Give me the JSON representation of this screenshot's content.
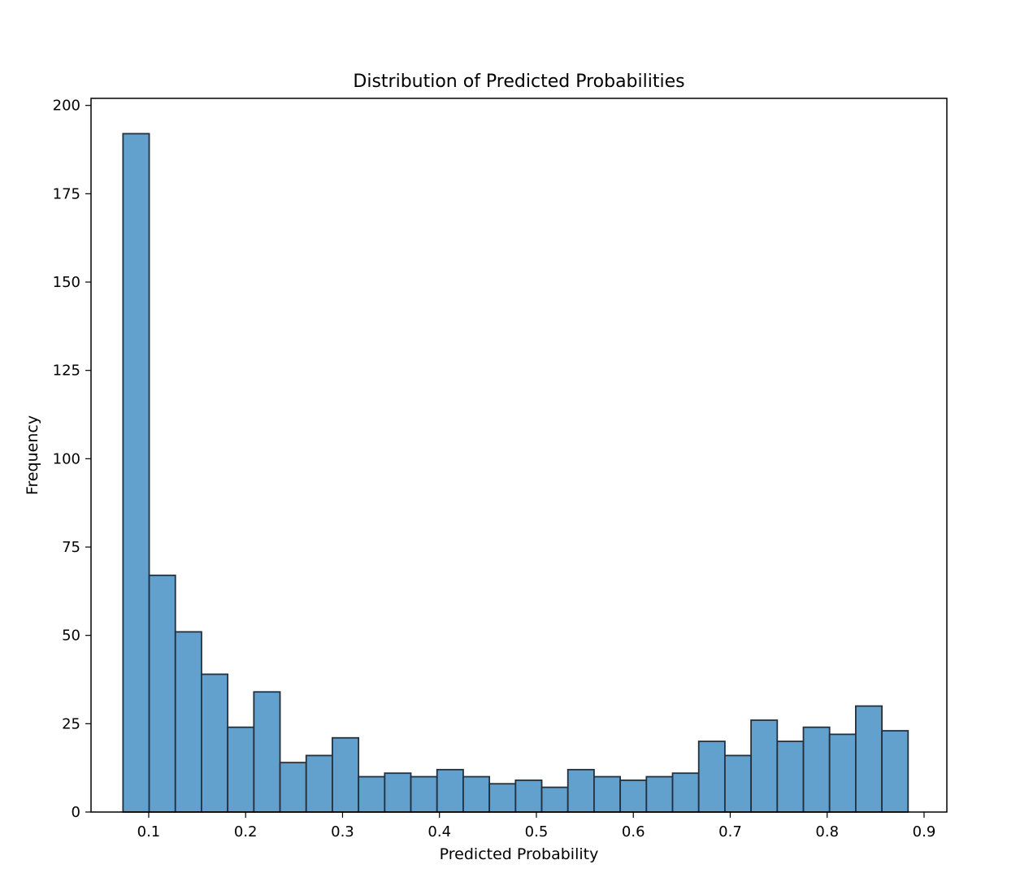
{
  "chart_data": {
    "type": "bar",
    "title": "Distribution of Predicted Probabilities",
    "xlabel": "Predicted Probability",
    "ylabel": "Frequency",
    "xlim": [
      0.0405,
      0.9235
    ],
    "ylim": [
      0,
      202
    ],
    "xticks": [
      0.1,
      0.2,
      0.3,
      0.4,
      0.5,
      0.6,
      0.7,
      0.8,
      0.9
    ],
    "xtick_labels": [
      "0.1",
      "0.2",
      "0.3",
      "0.4",
      "0.5",
      "0.6",
      "0.7",
      "0.8",
      "0.9"
    ],
    "yticks": [
      0,
      25,
      50,
      75,
      100,
      125,
      150,
      175,
      200
    ],
    "ytick_labels": [
      "0",
      "25",
      "50",
      "75",
      "100",
      "125",
      "150",
      "175",
      "200"
    ],
    "bin_start": 0.0735,
    "bin_end": 0.8835,
    "counts": [
      192,
      67,
      51,
      39,
      24,
      34,
      14,
      16,
      21,
      10,
      11,
      10,
      12,
      10,
      8,
      9,
      7,
      12,
      10,
      9,
      10,
      11,
      20,
      16,
      26,
      20,
      24,
      22,
      30,
      23
    ],
    "grid": false,
    "bar_fill": "#62A0CD",
    "bar_edge": "#24313D"
  }
}
